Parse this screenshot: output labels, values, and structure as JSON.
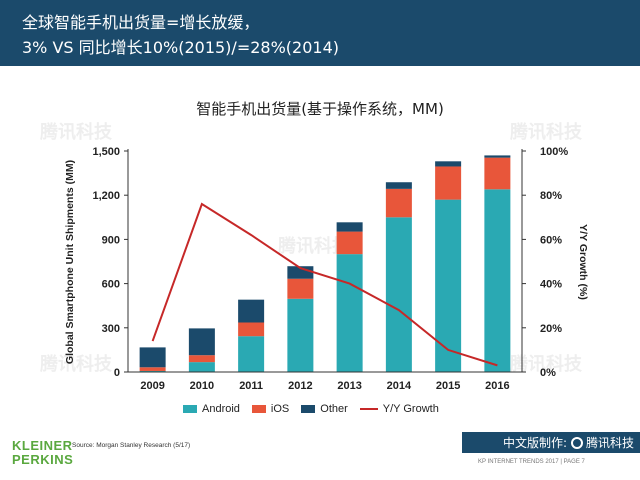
{
  "header": {
    "line1": "全球智能手机出货量=增长放缓，",
    "line2": "3% VS 同比增长10%(2015)/=28%(2014)"
  },
  "watermark_text": "腾讯科技",
  "chart_data": {
    "type": "bar",
    "stacked": true,
    "title": "智能手机出货量(基于操作系统，MM)",
    "categories": [
      "2009",
      "2010",
      "2011",
      "2012",
      "2013",
      "2014",
      "2015",
      "2016"
    ],
    "series": [
      {
        "name": "Android",
        "color": "#2aa9b3",
        "values": [
          7,
          67,
          243,
          497,
          800,
          1050,
          1170,
          1240
        ]
      },
      {
        "name": "iOS",
        "color": "#e8563a",
        "values": [
          25,
          47,
          93,
          136,
          153,
          193,
          225,
          215
        ]
      },
      {
        "name": "Other",
        "color": "#1b4a6b",
        "values": [
          135,
          182,
          155,
          85,
          63,
          45,
          35,
          15
        ]
      }
    ],
    "line_series": {
      "name": "Y/Y Growth",
      "color": "#c62828",
      "axis": "right",
      "values": [
        14,
        76,
        62,
        47,
        40,
        28,
        10,
        3
      ]
    },
    "ylabel": "Global Smartphone Unit Shipments (MM)",
    "y2label": "Y/Y Growth (%)",
    "ylim": [
      0,
      1500
    ],
    "y2lim": [
      0,
      100
    ],
    "yticks": [
      "0",
      "300",
      "600",
      "900",
      "1,200",
      "1,500"
    ],
    "y2ticks": [
      "0%",
      "20%",
      "40%",
      "60%",
      "80%",
      "100%"
    ],
    "legend_position": "bottom"
  },
  "source_text": "Source: Morgan Stanley Research (5/17)",
  "logo": {
    "line1": "KLEINER",
    "line2": "PERKINS"
  },
  "brand": {
    "prefix": "中文版制作:",
    "name": "腾讯科技"
  },
  "footer_text": "KP INTERNET TRENDS 2017  |  PAGE 7"
}
